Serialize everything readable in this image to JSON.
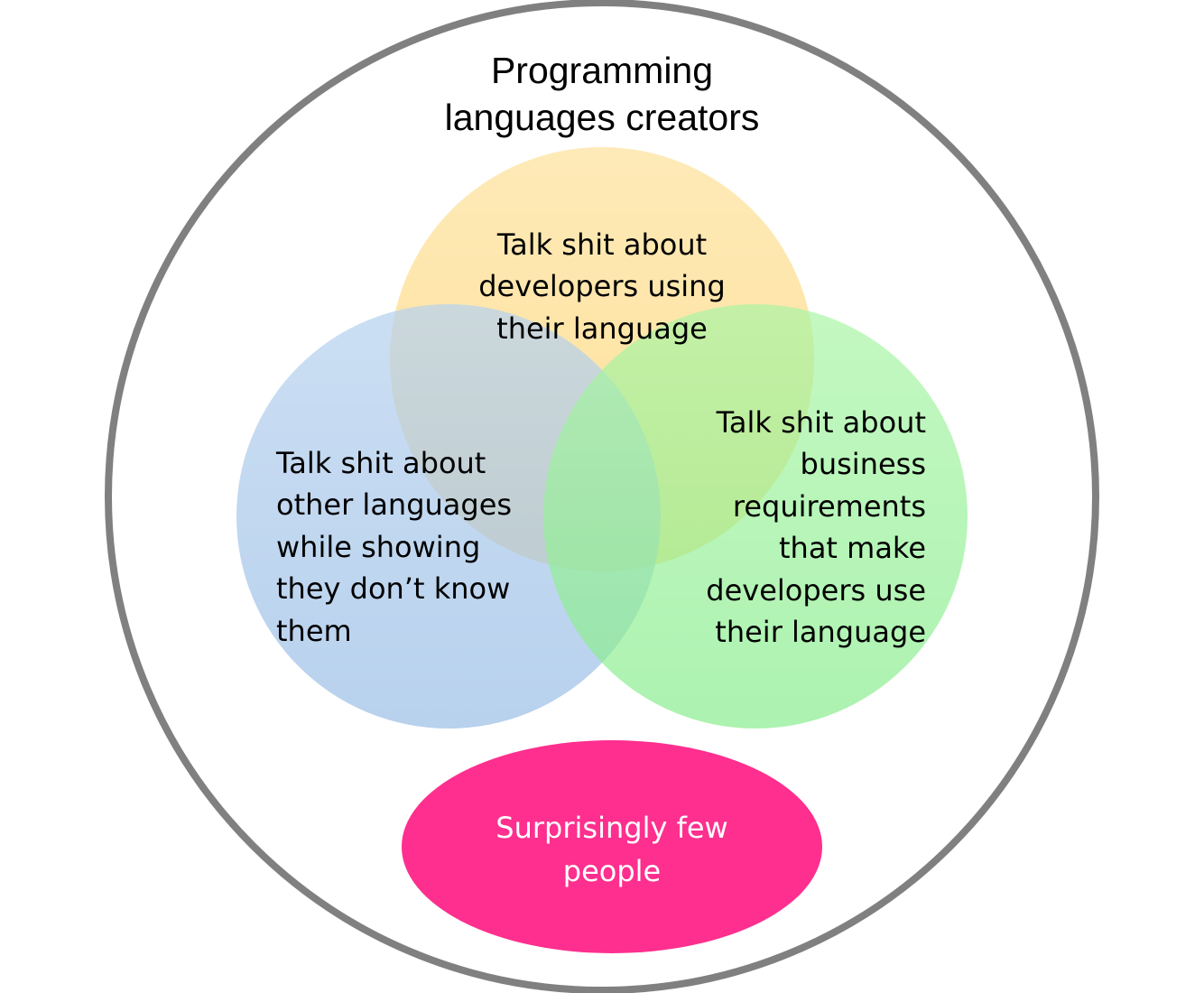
{
  "diagram": {
    "outer_circle": {
      "label": "Programming\nlanguages creators",
      "stroke_color": "#808080",
      "fill_color": "#ffffff"
    },
    "circles": [
      {
        "id": "top",
        "label": "Talk shit about\ndevelopers using\ntheir language",
        "color": "#fdd574"
      },
      {
        "id": "left",
        "label": "Talk shit about\nother languages\nwhile showing\nthey don’t know\nthem",
        "color": "#8db6e3"
      },
      {
        "id": "right",
        "label": "Talk shit about\nbusiness\nrequirements\nthat make\ndevelopers use\ntheir language",
        "color": "#75e97a"
      }
    ],
    "bottom_ellipse": {
      "label": "Surprisingly few\npeople",
      "color": "#fe2f8e",
      "text_color": "#ffffff"
    }
  }
}
